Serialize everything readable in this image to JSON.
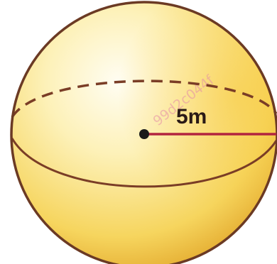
{
  "diagram": {
    "shape": "sphere",
    "radius_label": "5m",
    "watermark_text": "99d2c044f",
    "colors": {
      "sphere_highlight": "#fffdf2",
      "sphere_light": "#fdf1b8",
      "sphere_mid": "#f6d55e",
      "sphere_dark": "#e1a427",
      "outline": "#6b3a24",
      "equator": "#7a3d26",
      "radius_line": "#b2243f",
      "center_dot": "#1a1a1a"
    }
  }
}
